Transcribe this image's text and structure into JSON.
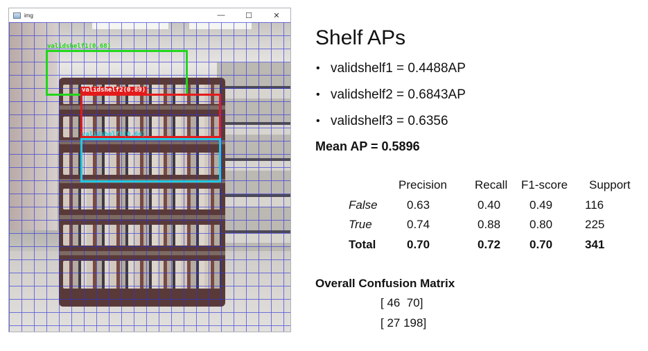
{
  "window": {
    "title": "img",
    "controls": {
      "minimize": "—",
      "maximize": "☐",
      "close": "✕"
    },
    "detections": [
      {
        "label": "validshelf1(0.68)",
        "color": "#22d61c"
      },
      {
        "label": "validshelf2(0.89)",
        "color": "#e41b1b"
      },
      {
        "label": "validshelf3(0.64)",
        "color": "#22c8e0"
      }
    ],
    "grid_color": "#2d32dc"
  },
  "panel": {
    "title": "Shelf APs",
    "ap_items": [
      {
        "text": "validshelf1 = 0.4488AP"
      },
      {
        "text": "validshelf2 = 0.6843AP"
      },
      {
        "text": "validshelf3 = 0.6356"
      }
    ],
    "bullet": "•",
    "mean_ap": "Mean AP = 0.5896",
    "report": {
      "headers": [
        "Precision",
        "Recall",
        "F1-score",
        "Support"
      ],
      "rows": [
        {
          "label": "False",
          "precision": "0.63",
          "recall": "0.40",
          "f1": "0.49",
          "support": "116"
        },
        {
          "label": "True",
          "precision": "0.74",
          "recall": "0.88",
          "f1": "0.80",
          "support": "225"
        },
        {
          "label": "Total",
          "precision": "0.70",
          "recall": "0.72",
          "f1": "0.70",
          "support": "341"
        }
      ]
    },
    "confusion_matrix": {
      "title": "Overall Confusion Matrix",
      "rows": [
        "[ 46  70]",
        "[ 27 198]"
      ]
    }
  }
}
